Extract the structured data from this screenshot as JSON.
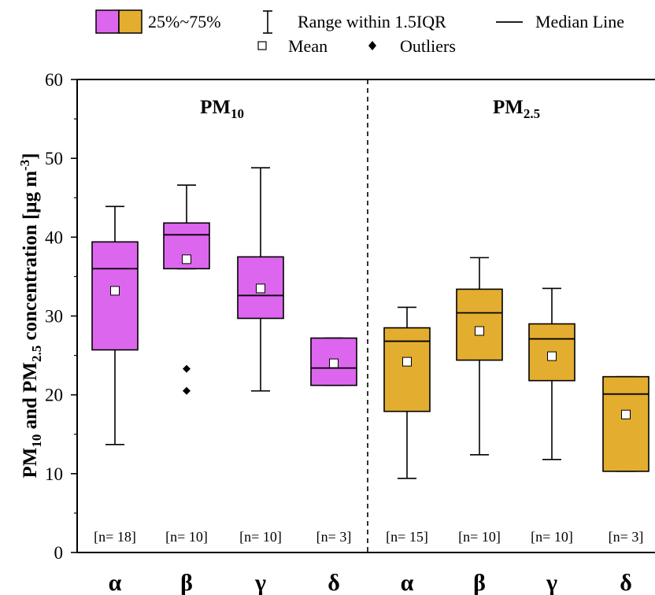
{
  "legend": {
    "box_label": "25%~75%",
    "whisker_label": "Range within 1.5IQR",
    "median_label": "Median Line",
    "mean_label": "Mean",
    "outlier_label": "Outliers"
  },
  "colors": {
    "pm10_fill": "#dd66ee",
    "pm25_fill": "#e3ad30",
    "mean_fill": "#ffffff",
    "line": "#000000"
  },
  "chart_data": {
    "type": "box",
    "ylabel": {
      "p1": "PM",
      "p1_sub": "10",
      "p2": " and PM",
      "p2_sub": "2.5",
      "p3": " concentration [μg m",
      "p3_sup": "-3",
      "p4": "]"
    },
    "ylim": [
      0,
      60
    ],
    "yticks": [
      0,
      10,
      20,
      30,
      40,
      50,
      60
    ],
    "grid": false,
    "groups": [
      {
        "name": "PM",
        "sub": "10",
        "color_key": "pm10_fill",
        "boxes": [
          {
            "category": "α",
            "n": "[n= 18]",
            "whisker_low": 13.7,
            "q1": 25.7,
            "median": 36.0,
            "q3": 39.4,
            "whisker_high": 43.9,
            "mean": 33.2,
            "outliers": []
          },
          {
            "category": "β",
            "n": "[n= 10]",
            "whisker_low": 36.0,
            "q1": 36.0,
            "median": 40.3,
            "q3": 41.8,
            "whisker_high": 46.6,
            "mean": 37.2,
            "outliers": [
              23.3,
              20.5
            ]
          },
          {
            "category": "γ",
            "n": "[n= 10]",
            "whisker_low": 20.5,
            "q1": 29.7,
            "median": 32.6,
            "q3": 37.5,
            "whisker_high": 48.8,
            "mean": 33.5,
            "outliers": []
          },
          {
            "category": "δ",
            "n": "[n= 3]",
            "whisker_low": 21.2,
            "q1": 21.2,
            "median": 23.4,
            "q3": 27.2,
            "whisker_high": 27.2,
            "mean": 24.0,
            "outliers": []
          }
        ]
      },
      {
        "name": "PM",
        "sub": "2.5",
        "color_key": "pm25_fill",
        "boxes": [
          {
            "category": "α",
            "n": "[n= 15]",
            "whisker_low": 9.4,
            "q1": 17.9,
            "median": 26.8,
            "q3": 28.5,
            "whisker_high": 31.1,
            "mean": 24.2,
            "outliers": []
          },
          {
            "category": "β",
            "n": "[n= 10]",
            "whisker_low": 12.4,
            "q1": 24.4,
            "median": 30.4,
            "q3": 33.4,
            "whisker_high": 37.4,
            "mean": 28.1,
            "outliers": []
          },
          {
            "category": "γ",
            "n": "[n= 10]",
            "whisker_low": 11.8,
            "q1": 21.8,
            "median": 27.1,
            "q3": 29.0,
            "whisker_high": 33.5,
            "mean": 24.9,
            "outliers": []
          },
          {
            "category": "δ",
            "n": "[n= 3]",
            "whisker_low": 10.3,
            "q1": 10.3,
            "median": 20.1,
            "q3": 22.3,
            "whisker_high": 22.3,
            "mean": 17.5,
            "outliers": []
          }
        ]
      }
    ]
  }
}
